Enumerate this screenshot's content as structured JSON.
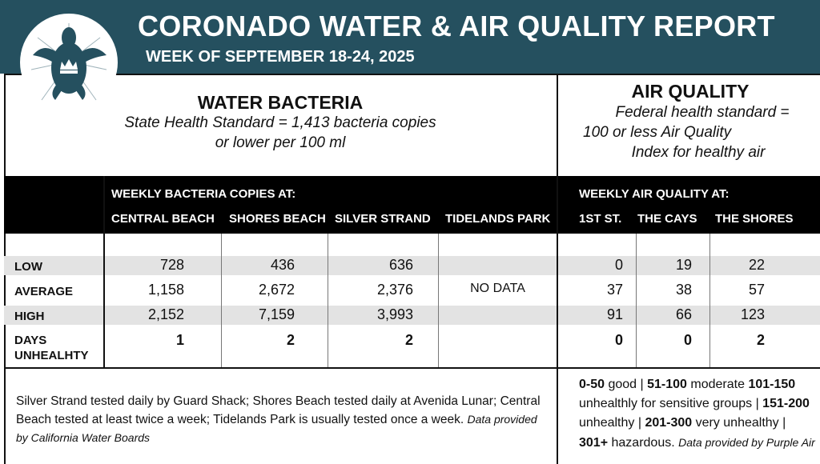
{
  "header": {
    "title": "CORONADO WATER & AIR QUALITY REPORT",
    "subtitle": "WEEK OF SEPTEMBER 18-24, 2025",
    "logo": "sea-turtle-crown-logo"
  },
  "water": {
    "title": "WATER BACTERIA",
    "standard_line1": "State Health Standard  = 1,413 bacteria copies",
    "standard_line2": "or lower per 100 ml",
    "band_title": "WEEKLY BACTERIA COPIES AT:",
    "columns": [
      "CENTRAL BEACH",
      "SHORES BEACH",
      "SILVER STRAND",
      "TIDELANDS PARK"
    ]
  },
  "air": {
    "title": "AIR QUALITY",
    "standard_line1": "Federal health standard =",
    "standard_line2": "100 or less Air Quality",
    "standard_line3": "Index for healthy air",
    "band_title": "WEEKLY AIR QUALITY AT:",
    "columns": [
      "1ST ST.",
      "THE CAYS",
      "THE SHORES"
    ]
  },
  "rows": [
    {
      "label": "LOW",
      "water": [
        "728",
        "436",
        "636",
        ""
      ],
      "air": [
        "0",
        "19",
        "22"
      ]
    },
    {
      "label": "AVERAGE",
      "water": [
        "1,158",
        "2,672",
        "2,376",
        "NO DATA"
      ],
      "air": [
        "37",
        "38",
        "57"
      ]
    },
    {
      "label": "HIGH",
      "water": [
        "2,152",
        "7,159",
        "3,993",
        ""
      ],
      "air": [
        "91",
        "66",
        "123"
      ]
    },
    {
      "label1": "DAYS",
      "label2": "UNHEALHTY",
      "water": [
        "1",
        "2",
        "2",
        ""
      ],
      "air": [
        "0",
        "0",
        "2"
      ]
    }
  ],
  "notes": {
    "water": "Silver Strand tested daily by Guard Shack; Shores Beach tested daily at Avenida Lunar; Central Beach tested at least twice a week; Tidelands Park is usually tested once a week.",
    "water_source": "Data provided by California Water Boards",
    "air_scale": [
      {
        "range": "0-50",
        "label": "good"
      },
      {
        "range": "51-100",
        "label": "moderate"
      },
      {
        "range": "101-150",
        "label": "unhealthly for sensitive groups"
      },
      {
        "range": "151-200",
        "label": "unhealthy"
      },
      {
        "range": "201-300",
        "label": "very unhealthy"
      },
      {
        "range": "301+",
        "label": "hazardous."
      }
    ],
    "air_source": "Data provided by Purple Air"
  },
  "colors": {
    "header": "#25505f",
    "band": "#000000",
    "row_shade": "#e3e3e3"
  }
}
